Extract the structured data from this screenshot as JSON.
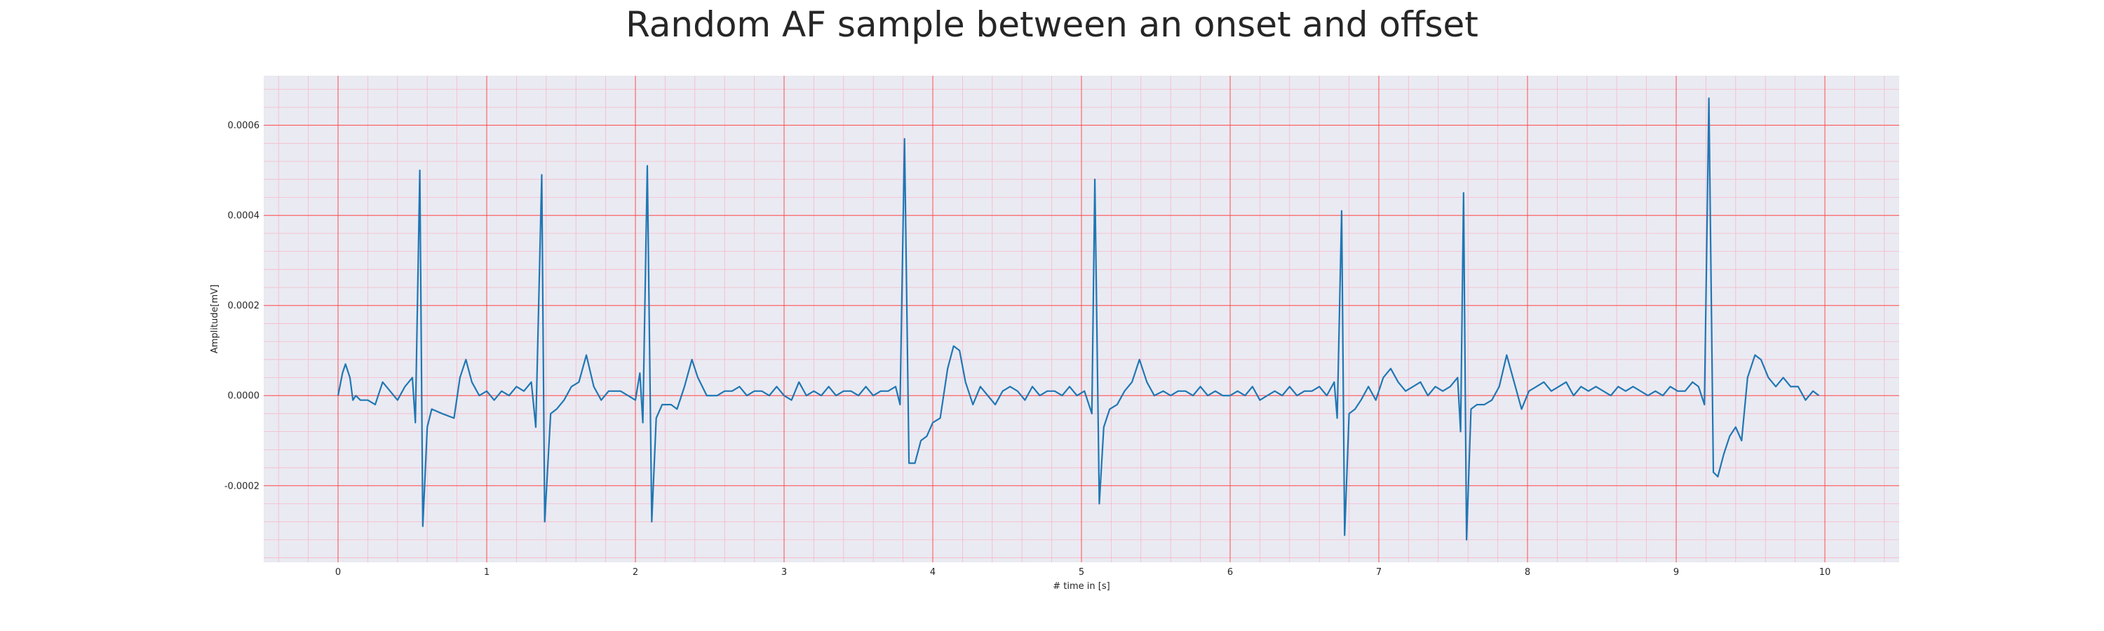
{
  "chart_data": {
    "type": "line",
    "title": "Random AF sample between an onset and offset",
    "xlabel": "# time in [s]",
    "ylabel": "Amplitude[mV]",
    "xlim": [
      -0.5,
      10.5
    ],
    "ylim": [
      -0.00037,
      0.00071
    ],
    "x_ticks": [
      0,
      1,
      2,
      3,
      4,
      5,
      6,
      7,
      8,
      9,
      10
    ],
    "x_tick_labels": [
      "0",
      "1",
      "2",
      "3",
      "4",
      "5",
      "6",
      "7",
      "8",
      "9",
      "10"
    ],
    "y_ticks": [
      -0.0002,
      0.0,
      0.0002,
      0.0004,
      0.0006
    ],
    "y_tick_labels": [
      "-0.0002",
      "0.0000",
      "0.0002",
      "0.0004",
      "0.0006"
    ],
    "grid": true,
    "colors": {
      "line": "#1f77b4",
      "background": "#eaeaf2",
      "major_grid": "#ff4d4d",
      "minor_grid": "#f6b8c8"
    },
    "series": [
      {
        "values": [
          [
            0.0,
            0.0
          ],
          [
            0.03,
            5e-05
          ],
          [
            0.05,
            7e-05
          ],
          [
            0.08,
            4e-05
          ],
          [
            0.1,
            -1e-05
          ],
          [
            0.12,
            0.0
          ],
          [
            0.15,
            -1e-05
          ],
          [
            0.2,
            -1e-05
          ],
          [
            0.25,
            -2e-05
          ],
          [
            0.3,
            3e-05
          ],
          [
            0.35,
            1e-05
          ],
          [
            0.4,
            -1e-05
          ],
          [
            0.45,
            2e-05
          ],
          [
            0.5,
            4e-05
          ],
          [
            0.52,
            -6e-05
          ],
          [
            0.55,
            0.0005
          ],
          [
            0.57,
            -0.00029
          ],
          [
            0.6,
            -7e-05
          ],
          [
            0.63,
            -3e-05
          ],
          [
            0.7,
            -4e-05
          ],
          [
            0.78,
            -5e-05
          ],
          [
            0.82,
            4e-05
          ],
          [
            0.86,
            8e-05
          ],
          [
            0.9,
            3e-05
          ],
          [
            0.95,
            0.0
          ],
          [
            1.0,
            1e-05
          ],
          [
            1.05,
            -1e-05
          ],
          [
            1.1,
            1e-05
          ],
          [
            1.15,
            0.0
          ],
          [
            1.2,
            2e-05
          ],
          [
            1.25,
            1e-05
          ],
          [
            1.3,
            3e-05
          ],
          [
            1.33,
            -7e-05
          ],
          [
            1.37,
            0.00049
          ],
          [
            1.39,
            -0.00028
          ],
          [
            1.43,
            -4e-05
          ],
          [
            1.47,
            -3e-05
          ],
          [
            1.52,
            -1e-05
          ],
          [
            1.57,
            2e-05
          ],
          [
            1.62,
            3e-05
          ],
          [
            1.67,
            9e-05
          ],
          [
            1.72,
            2e-05
          ],
          [
            1.77,
            -1e-05
          ],
          [
            1.82,
            1e-05
          ],
          [
            1.9,
            1e-05
          ],
          [
            1.95,
            0.0
          ],
          [
            2.0,
            -1e-05
          ],
          [
            2.03,
            5e-05
          ],
          [
            2.05,
            -6e-05
          ],
          [
            2.08,
            0.00051
          ],
          [
            2.11,
            -0.00028
          ],
          [
            2.14,
            -5e-05
          ],
          [
            2.18,
            -2e-05
          ],
          [
            2.24,
            -2e-05
          ],
          [
            2.28,
            -3e-05
          ],
          [
            2.33,
            2e-05
          ],
          [
            2.38,
            8e-05
          ],
          [
            2.42,
            4e-05
          ],
          [
            2.48,
            0.0
          ],
          [
            2.55,
            0.0
          ],
          [
            2.6,
            1e-05
          ],
          [
            2.65,
            1e-05
          ],
          [
            2.7,
            2e-05
          ],
          [
            2.75,
            0.0
          ],
          [
            2.8,
            1e-05
          ],
          [
            2.85,
            1e-05
          ],
          [
            2.9,
            0.0
          ],
          [
            2.95,
            2e-05
          ],
          [
            3.0,
            0.0
          ],
          [
            3.05,
            -1e-05
          ],
          [
            3.1,
            3e-05
          ],
          [
            3.15,
            0.0
          ],
          [
            3.2,
            1e-05
          ],
          [
            3.25,
            0.0
          ],
          [
            3.3,
            2e-05
          ],
          [
            3.35,
            0.0
          ],
          [
            3.4,
            1e-05
          ],
          [
            3.45,
            1e-05
          ],
          [
            3.5,
            0.0
          ],
          [
            3.55,
            2e-05
          ],
          [
            3.6,
            0.0
          ],
          [
            3.65,
            1e-05
          ],
          [
            3.7,
            1e-05
          ],
          [
            3.75,
            2e-05
          ],
          [
            3.78,
            -2e-05
          ],
          [
            3.81,
            0.00057
          ],
          [
            3.84,
            -0.00015
          ],
          [
            3.88,
            -0.00015
          ],
          [
            3.92,
            -0.0001
          ],
          [
            3.96,
            -9e-05
          ],
          [
            4.0,
            -6e-05
          ],
          [
            4.05,
            -5e-05
          ],
          [
            4.1,
            6e-05
          ],
          [
            4.14,
            0.00011
          ],
          [
            4.18,
            0.0001
          ],
          [
            4.22,
            3e-05
          ],
          [
            4.27,
            -2e-05
          ],
          [
            4.32,
            2e-05
          ],
          [
            4.37,
            0.0
          ],
          [
            4.42,
            -2e-05
          ],
          [
            4.47,
            1e-05
          ],
          [
            4.52,
            2e-05
          ],
          [
            4.57,
            1e-05
          ],
          [
            4.62,
            -1e-05
          ],
          [
            4.67,
            2e-05
          ],
          [
            4.72,
            0.0
          ],
          [
            4.77,
            1e-05
          ],
          [
            4.82,
            1e-05
          ],
          [
            4.87,
            0.0
          ],
          [
            4.92,
            2e-05
          ],
          [
            4.97,
            0.0
          ],
          [
            5.02,
            1e-05
          ],
          [
            5.07,
            -4e-05
          ],
          [
            5.09,
            0.00048
          ],
          [
            5.12,
            -0.00024
          ],
          [
            5.15,
            -7e-05
          ],
          [
            5.19,
            -3e-05
          ],
          [
            5.24,
            -2e-05
          ],
          [
            5.29,
            1e-05
          ],
          [
            5.34,
            3e-05
          ],
          [
            5.39,
            8e-05
          ],
          [
            5.44,
            3e-05
          ],
          [
            5.49,
            0.0
          ],
          [
            5.55,
            1e-05
          ],
          [
            5.6,
            0.0
          ],
          [
            5.65,
            1e-05
          ],
          [
            5.7,
            1e-05
          ],
          [
            5.75,
            0.0
          ],
          [
            5.8,
            2e-05
          ],
          [
            5.85,
            0.0
          ],
          [
            5.9,
            1e-05
          ],
          [
            5.95,
            0.0
          ],
          [
            6.0,
            0.0
          ],
          [
            6.05,
            1e-05
          ],
          [
            6.1,
            0.0
          ],
          [
            6.15,
            2e-05
          ],
          [
            6.2,
            -1e-05
          ],
          [
            6.25,
            0.0
          ],
          [
            6.3,
            1e-05
          ],
          [
            6.35,
            0.0
          ],
          [
            6.4,
            2e-05
          ],
          [
            6.45,
            0.0
          ],
          [
            6.5,
            1e-05
          ],
          [
            6.55,
            1e-05
          ],
          [
            6.6,
            2e-05
          ],
          [
            6.65,
            0.0
          ],
          [
            6.7,
            3e-05
          ],
          [
            6.72,
            -5e-05
          ],
          [
            6.75,
            0.00041
          ],
          [
            6.77,
            -0.00031
          ],
          [
            6.8,
            -4e-05
          ],
          [
            6.84,
            -3e-05
          ],
          [
            6.88,
            -1e-05
          ],
          [
            6.93,
            2e-05
          ],
          [
            6.98,
            -1e-05
          ],
          [
            7.03,
            4e-05
          ],
          [
            7.08,
            6e-05
          ],
          [
            7.13,
            3e-05
          ],
          [
            7.18,
            1e-05
          ],
          [
            7.23,
            2e-05
          ],
          [
            7.28,
            3e-05
          ],
          [
            7.33,
            0.0
          ],
          [
            7.38,
            2e-05
          ],
          [
            7.43,
            1e-05
          ],
          [
            7.48,
            2e-05
          ],
          [
            7.53,
            4e-05
          ],
          [
            7.55,
            -8e-05
          ],
          [
            7.57,
            0.00045
          ],
          [
            7.59,
            -0.00032
          ],
          [
            7.62,
            -3e-05
          ],
          [
            7.66,
            -2e-05
          ],
          [
            7.71,
            -2e-05
          ],
          [
            7.76,
            -1e-05
          ],
          [
            7.81,
            2e-05
          ],
          [
            7.86,
            9e-05
          ],
          [
            7.91,
            3e-05
          ],
          [
            7.96,
            -3e-05
          ],
          [
            8.01,
            1e-05
          ],
          [
            8.06,
            2e-05
          ],
          [
            8.11,
            3e-05
          ],
          [
            8.16,
            1e-05
          ],
          [
            8.21,
            2e-05
          ],
          [
            8.26,
            3e-05
          ],
          [
            8.31,
            0.0
          ],
          [
            8.36,
            2e-05
          ],
          [
            8.41,
            1e-05
          ],
          [
            8.46,
            2e-05
          ],
          [
            8.51,
            1e-05
          ],
          [
            8.56,
            0.0
          ],
          [
            8.61,
            2e-05
          ],
          [
            8.66,
            1e-05
          ],
          [
            8.71,
            2e-05
          ],
          [
            8.76,
            1e-05
          ],
          [
            8.81,
            0.0
          ],
          [
            8.86,
            1e-05
          ],
          [
            8.91,
            0.0
          ],
          [
            8.96,
            2e-05
          ],
          [
            9.01,
            1e-05
          ],
          [
            9.06,
            1e-05
          ],
          [
            9.11,
            3e-05
          ],
          [
            9.15,
            2e-05
          ],
          [
            9.19,
            -2e-05
          ],
          [
            9.22,
            0.00066
          ],
          [
            9.25,
            -0.00017
          ],
          [
            9.28,
            -0.00018
          ],
          [
            9.32,
            -0.00013
          ],
          [
            9.36,
            -9e-05
          ],
          [
            9.4,
            -7e-05
          ],
          [
            9.44,
            -0.0001
          ],
          [
            9.48,
            4e-05
          ],
          [
            9.53,
            9e-05
          ],
          [
            9.57,
            8e-05
          ],
          [
            9.62,
            4e-05
          ],
          [
            9.67,
            2e-05
          ],
          [
            9.72,
            4e-05
          ],
          [
            9.77,
            2e-05
          ],
          [
            9.82,
            2e-05
          ],
          [
            9.87,
            -1e-05
          ],
          [
            9.92,
            1e-05
          ],
          [
            9.96,
            0.0
          ]
        ]
      }
    ]
  }
}
